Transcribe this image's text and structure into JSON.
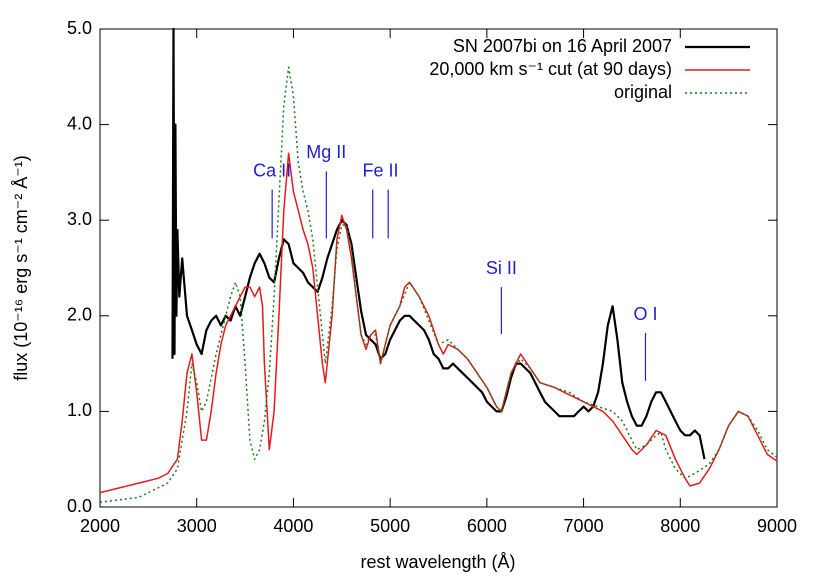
{
  "chart_data": {
    "type": "line",
    "xlabel": "rest wavelength (Å)",
    "ylabel": "flux (10⁻¹⁶ erg s⁻¹ cm⁻² Å⁻¹)",
    "xlim": [
      2000,
      9000
    ],
    "ylim": [
      0,
      5
    ],
    "xticks": [
      2000,
      3000,
      4000,
      5000,
      6000,
      7000,
      8000,
      9000
    ],
    "yticks": [
      {
        "value": 0,
        "label": "0.0"
      },
      {
        "value": 1,
        "label": "1.0"
      },
      {
        "value": 2,
        "label": "2.0"
      },
      {
        "value": 3,
        "label": "3.0"
      },
      {
        "value": 4,
        "label": "4.0"
      },
      {
        "value": 5,
        "label": "5.0"
      }
    ],
    "legend": "top-right",
    "series": [
      {
        "name": "SN 2007bi on 16 April 2007",
        "color": "#000000",
        "style": "solid",
        "x": [
          2750,
          2760,
          2770,
          2780,
          2790,
          2800,
          2820,
          2850,
          2900,
          2950,
          3000,
          3050,
          3100,
          3150,
          3200,
          3250,
          3300,
          3350,
          3400,
          3450,
          3500,
          3550,
          3600,
          3650,
          3700,
          3750,
          3800,
          3850,
          3900,
          3950,
          4000,
          4050,
          4100,
          4150,
          4200,
          4250,
          4300,
          4350,
          4400,
          4450,
          4500,
          4550,
          4600,
          4650,
          4700,
          4750,
          4800,
          4850,
          4900,
          4950,
          5000,
          5050,
          5100,
          5150,
          5200,
          5250,
          5300,
          5350,
          5400,
          5450,
          5500,
          5550,
          5600,
          5650,
          5700,
          5750,
          5800,
          5850,
          5900,
          5950,
          6000,
          6050,
          6100,
          6150,
          6200,
          6250,
          6300,
          6350,
          6400,
          6450,
          6500,
          6550,
          6600,
          6650,
          6700,
          6750,
          6800,
          6850,
          6900,
          6950,
          7000,
          7050,
          7100,
          7150,
          7200,
          7250,
          7300,
          7350,
          7400,
          7450,
          7500,
          7550,
          7600,
          7650,
          7700,
          7750,
          7800,
          7850,
          7900,
          7950,
          8000,
          8050,
          8100,
          8150,
          8200,
          8250
        ],
        "values": [
          1.55,
          5.0,
          1.6,
          4.0,
          2.0,
          2.9,
          2.2,
          2.6,
          2.0,
          1.85,
          1.7,
          1.6,
          1.85,
          1.95,
          2.0,
          1.9,
          2.0,
          1.95,
          2.1,
          2.0,
          2.2,
          2.4,
          2.55,
          2.65,
          2.55,
          2.4,
          2.35,
          2.6,
          2.8,
          2.75,
          2.55,
          2.5,
          2.45,
          2.35,
          2.3,
          2.25,
          2.4,
          2.6,
          2.75,
          2.9,
          3.0,
          2.95,
          2.75,
          2.4,
          2.05,
          1.8,
          1.75,
          1.7,
          1.55,
          1.6,
          1.75,
          1.85,
          1.95,
          2.0,
          2.0,
          1.95,
          1.9,
          1.85,
          1.75,
          1.6,
          1.55,
          1.45,
          1.45,
          1.5,
          1.45,
          1.4,
          1.35,
          1.3,
          1.25,
          1.2,
          1.1,
          1.05,
          1.0,
          1.0,
          1.15,
          1.35,
          1.5,
          1.5,
          1.45,
          1.4,
          1.3,
          1.2,
          1.1,
          1.05,
          1.0,
          0.95,
          0.95,
          0.95,
          0.95,
          1.0,
          1.05,
          1.0,
          1.05,
          1.2,
          1.5,
          1.9,
          2.1,
          1.75,
          1.3,
          1.1,
          0.95,
          0.85,
          0.85,
          0.95,
          1.1,
          1.2,
          1.2,
          1.1,
          1.0,
          0.9,
          0.8,
          0.75,
          0.75,
          0.8,
          0.75,
          0.5
        ]
      },
      {
        "name": "20,000 km s⁻¹ cut (at 90 days)",
        "color": "#e41a1c",
        "style": "solid",
        "x": [
          2000,
          2200,
          2400,
          2600,
          2700,
          2800,
          2850,
          2900,
          2950,
          3000,
          3050,
          3100,
          3150,
          3200,
          3250,
          3300,
          3350,
          3400,
          3450,
          3500,
          3550,
          3600,
          3650,
          3680,
          3700,
          3750,
          3800,
          3850,
          3900,
          3950,
          4000,
          4050,
          4100,
          4150,
          4200,
          4250,
          4300,
          4330,
          4400,
          4450,
          4500,
          4550,
          4600,
          4650,
          4700,
          4750,
          4800,
          4850,
          4900,
          4950,
          5000,
          5100,
          5150,
          5200,
          5300,
          5400,
          5500,
          5550,
          5600,
          5700,
          5800,
          5900,
          6000,
          6100,
          6150,
          6250,
          6350,
          6450,
          6550,
          6700,
          6800,
          6900,
          7000,
          7100,
          7200,
          7300,
          7400,
          7500,
          7550,
          7650,
          7750,
          7850,
          7950,
          8050,
          8100,
          8200,
          8300,
          8400,
          8500,
          8600,
          8700,
          8800,
          8900,
          9000
        ],
        "values": [
          0.15,
          0.2,
          0.25,
          0.3,
          0.35,
          0.5,
          0.9,
          1.4,
          1.6,
          1.2,
          0.7,
          0.7,
          1.0,
          1.4,
          1.7,
          1.9,
          2.0,
          2.1,
          2.2,
          2.3,
          2.3,
          2.2,
          2.3,
          2.1,
          1.5,
          0.6,
          1.0,
          2.0,
          3.1,
          3.7,
          3.3,
          3.1,
          2.9,
          2.75,
          2.5,
          2.0,
          1.5,
          1.3,
          2.0,
          2.8,
          3.05,
          2.9,
          2.6,
          2.2,
          1.8,
          1.65,
          1.8,
          1.85,
          1.5,
          1.7,
          1.9,
          2.1,
          2.3,
          2.35,
          2.2,
          2.0,
          1.7,
          1.6,
          1.7,
          1.65,
          1.55,
          1.4,
          1.25,
          1.05,
          1.0,
          1.4,
          1.6,
          1.45,
          1.3,
          1.25,
          1.2,
          1.15,
          1.1,
          1.05,
          1.0,
          0.9,
          0.75,
          0.6,
          0.55,
          0.65,
          0.8,
          0.75,
          0.5,
          0.3,
          0.22,
          0.25,
          0.4,
          0.6,
          0.85,
          1.0,
          0.95,
          0.75,
          0.55,
          0.48
        ]
      },
      {
        "name": "original",
        "color": "#1a7a1a",
        "style": "dotted",
        "x": [
          2000,
          2400,
          2600,
          2700,
          2800,
          2900,
          2950,
          3000,
          3050,
          3100,
          3200,
          3300,
          3350,
          3400,
          3450,
          3500,
          3550,
          3600,
          3650,
          3700,
          3750,
          3800,
          3850,
          3900,
          3950,
          4000,
          4050,
          4100,
          4150,
          4200,
          4250,
          4300,
          4330,
          4400,
          4450,
          4500,
          4550,
          4600,
          4650,
          4700,
          4750,
          4800,
          4850,
          4900,
          5000,
          5100,
          5200,
          5300,
          5400,
          5500,
          5600,
          5700,
          5800,
          5900,
          6000,
          6100,
          6150,
          6250,
          6350,
          6450,
          6550,
          6700,
          6850,
          7000,
          7150,
          7300,
          7400,
          7500,
          7550,
          7650,
          7750,
          7800,
          7850,
          7950,
          8050,
          8150,
          8300,
          8400,
          8500,
          8600,
          8700,
          8800,
          8900,
          9000
        ],
        "values": [
          0.05,
          0.1,
          0.2,
          0.25,
          0.4,
          1.0,
          1.5,
          1.3,
          1.0,
          1.1,
          1.6,
          2.0,
          2.2,
          2.35,
          2.2,
          1.5,
          0.7,
          0.5,
          0.6,
          0.9,
          1.4,
          2.2,
          3.2,
          4.2,
          4.6,
          4.3,
          3.6,
          3.3,
          3.1,
          2.8,
          2.3,
          1.8,
          1.5,
          2.1,
          2.7,
          2.95,
          2.95,
          2.7,
          2.2,
          1.8,
          1.7,
          1.8,
          1.8,
          1.5,
          1.9,
          2.1,
          2.35,
          2.2,
          1.95,
          1.7,
          1.75,
          1.65,
          1.55,
          1.4,
          1.25,
          1.05,
          1.0,
          1.4,
          1.55,
          1.45,
          1.3,
          1.25,
          1.2,
          1.1,
          1.05,
          1.0,
          0.9,
          0.7,
          0.6,
          0.65,
          0.75,
          0.78,
          0.6,
          0.4,
          0.3,
          0.35,
          0.45,
          0.6,
          0.85,
          1.0,
          0.95,
          0.8,
          0.6,
          0.52
        ]
      }
    ],
    "annotations": [
      {
        "text": "Ca II",
        "lines": [
          3780
        ],
        "y1": 2.81,
        "y2": 3.32
      },
      {
        "text": "Mg II",
        "lines": [
          4340
        ],
        "y1": 2.81,
        "y2": 3.51
      },
      {
        "text": "Fe II",
        "lines": [
          4820,
          4980
        ],
        "y1": 2.81,
        "y2": 3.32
      },
      {
        "text": "Si II",
        "lines": [
          6150
        ],
        "y1": 1.81,
        "y2": 2.3
      },
      {
        "text": "O I",
        "lines": [
          7640
        ],
        "y1": 1.32,
        "y2": 1.82
      }
    ]
  }
}
